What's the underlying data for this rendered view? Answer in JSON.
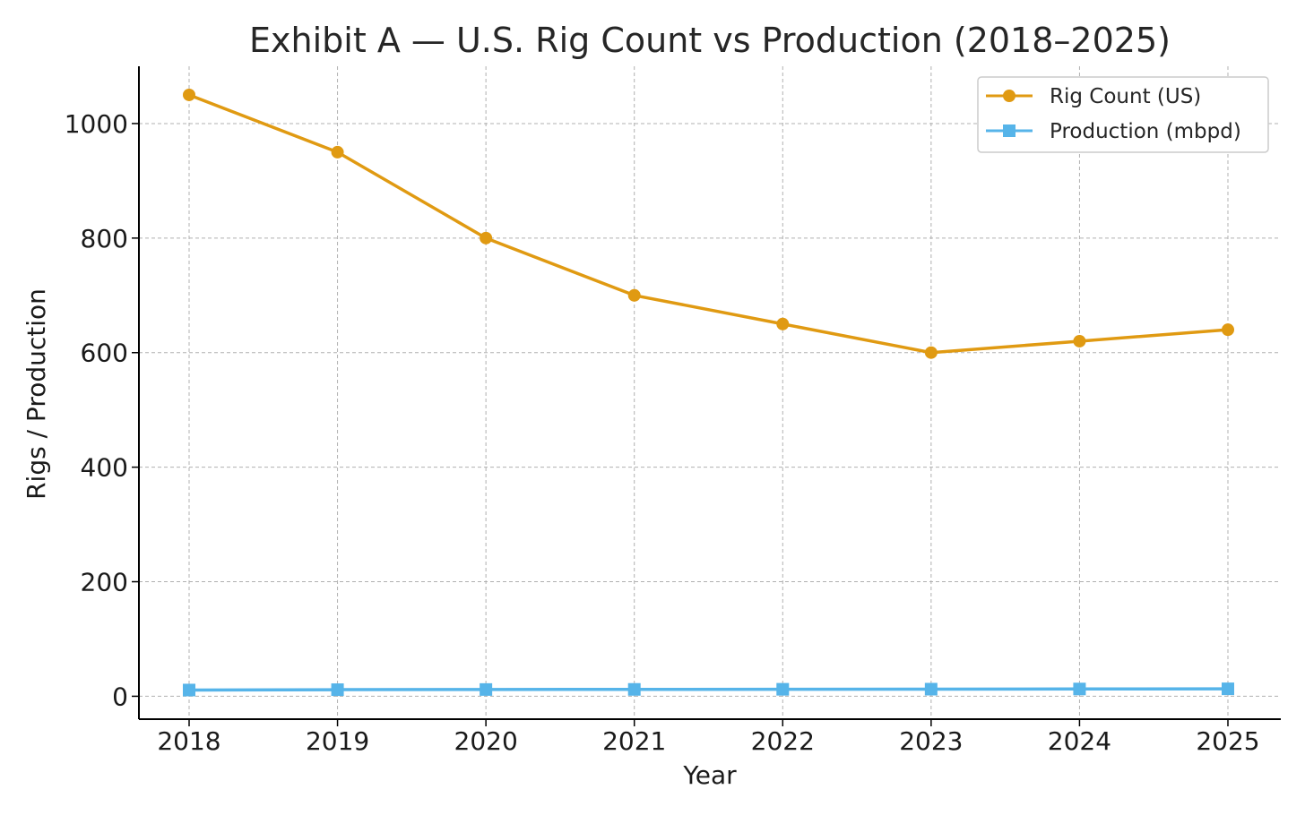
{
  "chart_data": {
    "type": "line",
    "title": "Exhibit A — U.S. Rig Count vs Production (2018–2025)",
    "xlabel": "Year",
    "ylabel": "Rigs / Production",
    "x": [
      "2018",
      "2019",
      "2020",
      "2021",
      "2022",
      "2023",
      "2024",
      "2025"
    ],
    "yticks": [
      "0",
      "200",
      "400",
      "600",
      "800",
      "1000"
    ],
    "ylim": [
      -40,
      1100
    ],
    "grid": true,
    "legend_position": "top-right",
    "series": [
      {
        "name": "Rig Count (US)",
        "values": [
          1050,
          950,
          800,
          700,
          650,
          600,
          620,
          640
        ],
        "color": "#E09A12",
        "marker": "circle"
      },
      {
        "name": "Production (mbpd)",
        "values": [
          10.9,
          11.5,
          11.8,
          12.0,
          12.2,
          12.4,
          12.7,
          13.0
        ],
        "color": "#56B4E9",
        "marker": "square"
      }
    ]
  }
}
